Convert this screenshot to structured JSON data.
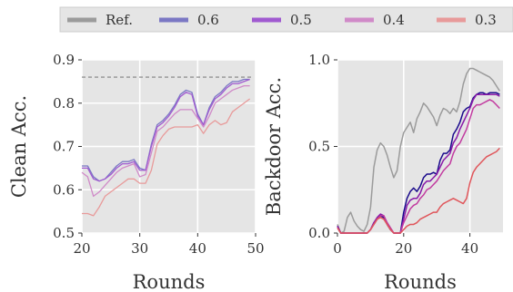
{
  "colors": {
    "panel_bg": "#e5e5e5",
    "grid": "#ffffff",
    "ref": "#9b9b9b",
    "s06": "#7b78c4",
    "s05": "#a05ad0",
    "s04": "#d08ac8",
    "s03": "#e89a9a",
    "dark06": "#1a0a8c",
    "dark05": "#8a1aa8",
    "dark04": "#c23ba0",
    "dark03": "#e0555a"
  },
  "legend": {
    "items": [
      {
        "label": "Ref.",
        "color": "#9b9b9b"
      },
      {
        "label": "0.6",
        "color": "#7b78c4"
      },
      {
        "label": "0.5",
        "color": "#a05ad0"
      },
      {
        "label": "0.4",
        "color": "#d08ac8"
      },
      {
        "label": "0.3",
        "color": "#e89a9a"
      }
    ]
  },
  "chart_data": [
    {
      "type": "line",
      "xlabel": "Rounds",
      "ylabel": "Clean Acc.",
      "xlim": [
        20,
        50
      ],
      "ylim": [
        0.5,
        0.9
      ],
      "xticks": [
        20,
        30,
        40,
        50
      ],
      "yticks": [
        0.5,
        0.6,
        0.7,
        0.8,
        0.9
      ],
      "xtick_labels": [
        "20",
        "30",
        "40",
        "50"
      ],
      "ytick_labels": [
        "0.5",
        "0.6",
        "0.7",
        "0.8",
        "0.9"
      ],
      "ref_line": 0.86,
      "grid": true,
      "x": [
        20,
        21,
        22,
        23,
        24,
        25,
        26,
        27,
        28,
        29,
        30,
        31,
        32,
        33,
        34,
        35,
        36,
        37,
        38,
        39,
        40,
        41,
        42,
        43,
        44,
        45,
        46,
        47,
        48,
        49
      ],
      "series": [
        {
          "name": "0.6",
          "values": [
            0.655,
            0.655,
            0.63,
            0.62,
            0.625,
            0.64,
            0.655,
            0.665,
            0.665,
            0.67,
            0.65,
            0.645,
            0.705,
            0.75,
            0.76,
            0.775,
            0.795,
            0.82,
            0.83,
            0.825,
            0.775,
            0.75,
            0.79,
            0.815,
            0.825,
            0.84,
            0.85,
            0.85,
            0.855,
            0.855
          ]
        },
        {
          "name": "0.5",
          "values": [
            0.65,
            0.65,
            0.625,
            0.62,
            0.625,
            0.635,
            0.65,
            0.66,
            0.66,
            0.665,
            0.645,
            0.645,
            0.7,
            0.745,
            0.755,
            0.77,
            0.79,
            0.815,
            0.825,
            0.82,
            0.77,
            0.75,
            0.785,
            0.81,
            0.82,
            0.835,
            0.845,
            0.845,
            0.85,
            0.855
          ]
        },
        {
          "name": "0.4",
          "values": [
            0.64,
            0.63,
            0.585,
            0.595,
            0.61,
            0.625,
            0.64,
            0.65,
            0.655,
            0.66,
            0.63,
            0.635,
            0.685,
            0.735,
            0.745,
            0.76,
            0.775,
            0.785,
            0.785,
            0.785,
            0.765,
            0.745,
            0.77,
            0.8,
            0.81,
            0.82,
            0.83,
            0.835,
            0.84,
            0.84
          ]
        },
        {
          "name": "0.3",
          "values": [
            0.545,
            0.545,
            0.54,
            0.56,
            0.585,
            0.595,
            0.605,
            0.615,
            0.625,
            0.625,
            0.615,
            0.615,
            0.645,
            0.705,
            0.725,
            0.74,
            0.745,
            0.745,
            0.745,
            0.745,
            0.75,
            0.73,
            0.75,
            0.76,
            0.75,
            0.755,
            0.78,
            0.79,
            0.8,
            0.81
          ]
        }
      ]
    },
    {
      "type": "line",
      "xlabel": "Rounds",
      "ylabel": "Backdoor Acc.",
      "xlim": [
        0,
        50
      ],
      "ylim": [
        0.0,
        1.0
      ],
      "xticks": [
        0,
        20,
        40
      ],
      "yticks": [
        0.0,
        0.5,
        1.0
      ],
      "xtick_labels": [
        "0",
        "20",
        "40"
      ],
      "ytick_labels": [
        "0.0",
        "0.5",
        "1.0"
      ],
      "grid": true,
      "x": [
        0,
        1,
        2,
        3,
        4,
        5,
        6,
        7,
        8,
        9,
        10,
        11,
        12,
        13,
        14,
        15,
        16,
        17,
        18,
        19,
        20,
        21,
        22,
        23,
        24,
        25,
        26,
        27,
        28,
        29,
        30,
        31,
        32,
        33,
        34,
        35,
        36,
        37,
        38,
        39,
        40,
        41,
        42,
        43,
        44,
        45,
        46,
        47,
        48,
        49
      ],
      "series": [
        {
          "name": "Ref.",
          "values": [
            0.05,
            0.0,
            0.01,
            0.09,
            0.12,
            0.07,
            0.04,
            0.02,
            0.01,
            0.05,
            0.15,
            0.38,
            0.48,
            0.52,
            0.5,
            0.45,
            0.38,
            0.32,
            0.36,
            0.5,
            0.58,
            0.61,
            0.64,
            0.58,
            0.66,
            0.7,
            0.75,
            0.73,
            0.7,
            0.67,
            0.62,
            0.68,
            0.72,
            0.71,
            0.69,
            0.72,
            0.7,
            0.76,
            0.86,
            0.92,
            0.95,
            0.95,
            0.94,
            0.93,
            0.92,
            0.91,
            0.9,
            0.88,
            0.85,
            0.82
          ]
        },
        {
          "name": "0.6",
          "values": [
            0.04,
            0.0,
            0.0,
            0.0,
            0.0,
            0.0,
            0.0,
            0.0,
            0.0,
            0.0,
            0.02,
            0.06,
            0.08,
            0.1,
            0.09,
            0.05,
            0.02,
            0.0,
            0.0,
            0.0,
            0.12,
            0.2,
            0.24,
            0.26,
            0.24,
            0.27,
            0.32,
            0.34,
            0.34,
            0.35,
            0.34,
            0.42,
            0.46,
            0.46,
            0.48,
            0.57,
            0.6,
            0.64,
            0.7,
            0.72,
            0.73,
            0.78,
            0.8,
            0.81,
            0.81,
            0.8,
            0.81,
            0.81,
            0.81,
            0.8
          ]
        },
        {
          "name": "0.5",
          "values": [
            0.04,
            0.0,
            0.0,
            0.0,
            0.0,
            0.0,
            0.0,
            0.0,
            0.0,
            0.0,
            0.02,
            0.06,
            0.09,
            0.11,
            0.1,
            0.06,
            0.03,
            0.0,
            0.0,
            0.0,
            0.08,
            0.16,
            0.19,
            0.2,
            0.2,
            0.23,
            0.28,
            0.3,
            0.3,
            0.32,
            0.34,
            0.38,
            0.42,
            0.44,
            0.46,
            0.52,
            0.55,
            0.6,
            0.64,
            0.68,
            0.72,
            0.77,
            0.8,
            0.8,
            0.8,
            0.8,
            0.8,
            0.8,
            0.8,
            0.79
          ]
        },
        {
          "name": "0.4",
          "values": [
            0.03,
            0.0,
            0.0,
            0.0,
            0.0,
            0.0,
            0.0,
            0.0,
            0.0,
            0.0,
            0.02,
            0.05,
            0.08,
            0.1,
            0.1,
            0.06,
            0.03,
            0.0,
            0.0,
            0.0,
            0.06,
            0.1,
            0.14,
            0.16,
            0.17,
            0.2,
            0.22,
            0.25,
            0.26,
            0.28,
            0.3,
            0.33,
            0.36,
            0.38,
            0.4,
            0.46,
            0.5,
            0.52,
            0.56,
            0.6,
            0.66,
            0.72,
            0.74,
            0.74,
            0.75,
            0.76,
            0.77,
            0.76,
            0.74,
            0.72
          ]
        },
        {
          "name": "0.3",
          "values": [
            0.03,
            0.0,
            0.0,
            0.0,
            0.0,
            0.0,
            0.0,
            0.0,
            0.0,
            0.0,
            0.02,
            0.05,
            0.08,
            0.09,
            0.08,
            0.05,
            0.02,
            0.0,
            0.0,
            0.0,
            0.02,
            0.04,
            0.05,
            0.05,
            0.06,
            0.08,
            0.09,
            0.1,
            0.11,
            0.12,
            0.12,
            0.15,
            0.17,
            0.18,
            0.19,
            0.2,
            0.19,
            0.18,
            0.17,
            0.2,
            0.29,
            0.35,
            0.38,
            0.4,
            0.42,
            0.44,
            0.45,
            0.46,
            0.47,
            0.49
          ]
        }
      ]
    }
  ]
}
